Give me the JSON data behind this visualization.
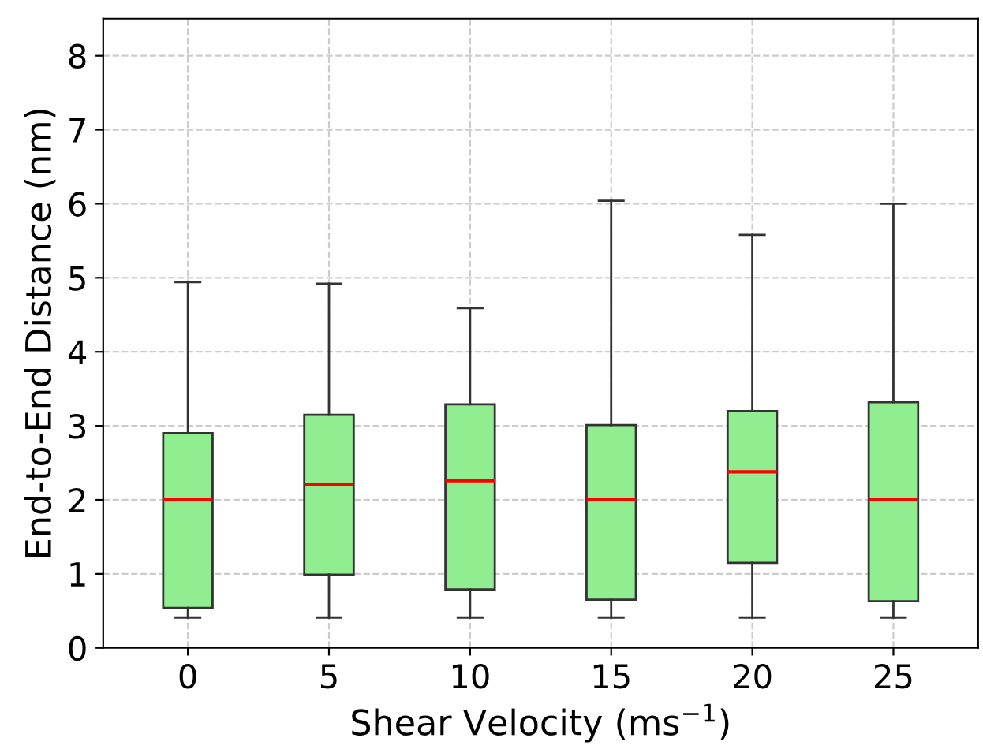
{
  "chart_data": {
    "type": "box",
    "xlabel": "Shear Velocity (ms$^{−1}$)",
    "ylabel": "End-to-End Distance (nm)",
    "categories": [
      "0",
      "5",
      "10",
      "15",
      "20",
      "25"
    ],
    "color": "#90ee90",
    "boxes": [
      {
        "low": 0.41,
        "q1": 0.54,
        "median": 2.0,
        "q3": 2.9,
        "high": 4.94
      },
      {
        "low": 0.41,
        "q1": 0.99,
        "median": 2.21,
        "q3": 3.15,
        "high": 4.92
      },
      {
        "low": 0.41,
        "q1": 0.79,
        "median": 2.26,
        "q3": 3.29,
        "high": 4.59
      },
      {
        "low": 0.41,
        "q1": 0.65,
        "median": 2.0,
        "q3": 3.01,
        "high": 6.04
      },
      {
        "low": 0.41,
        "q1": 1.15,
        "median": 2.38,
        "q3": 3.2,
        "high": 5.58
      },
      {
        "low": 0.41,
        "q1": 0.63,
        "median": 2.0,
        "q3": 3.32,
        "high": 6.0
      }
    ],
    "ylim": [
      0,
      8.5
    ],
    "yticks": [
      0,
      1,
      2,
      3,
      4,
      5,
      6,
      7,
      8
    ],
    "grid": true,
    "line_style": "dashed"
  }
}
